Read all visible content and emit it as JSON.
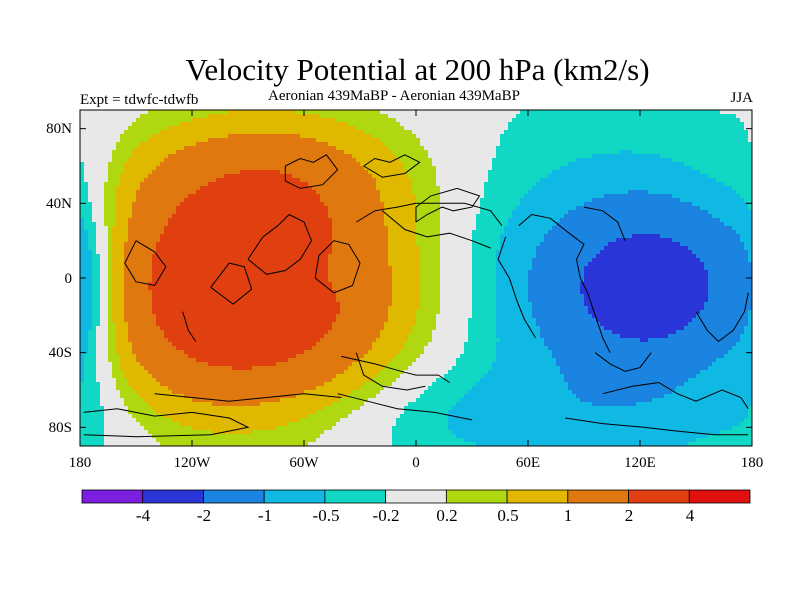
{
  "chart_data": {
    "type": "filled-contour-map",
    "title": "Velocity Potential at 200 hPa (km2/s)",
    "subtitle_left": "Expt = tdwfc-tdwfb",
    "subtitle_center": "Aeronian 439MaBP - Aeronian 439MaBP",
    "subtitle_right": "JJA",
    "x_axis": {
      "range": [
        -180,
        180
      ],
      "ticks": [
        {
          "value": -180,
          "label": "180"
        },
        {
          "value": -120,
          "label": "120W"
        },
        {
          "value": -60,
          "label": "60W"
        },
        {
          "value": 0,
          "label": "0"
        },
        {
          "value": 60,
          "label": "60E"
        },
        {
          "value": 120,
          "label": "120E"
        },
        {
          "value": 180,
          "label": "180"
        }
      ]
    },
    "y_axis": {
      "range": [
        -90,
        90
      ],
      "ticks": [
        {
          "value": 80,
          "label": "80N"
        },
        {
          "value": 40,
          "label": "40N"
        },
        {
          "value": 0,
          "label": "0"
        },
        {
          "value": -40,
          "label": "40S"
        },
        {
          "value": -80,
          "label": "80S"
        }
      ]
    },
    "contour_levels": [
      {
        "value": -4,
        "label": "-4"
      },
      {
        "value": -2,
        "label": "-2"
      },
      {
        "value": -1,
        "label": "-1"
      },
      {
        "value": -0.5,
        "label": "-0.5"
      },
      {
        "value": -0.2,
        "label": "-0.2"
      },
      {
        "value": 0.2,
        "label": "0.2"
      },
      {
        "value": 0.5,
        "label": "0.5"
      },
      {
        "value": 1,
        "label": "1"
      },
      {
        "value": 2,
        "label": "2"
      },
      {
        "value": 4,
        "label": "4"
      }
    ],
    "fill_colors": [
      "#7a1ee0",
      "#2a35d8",
      "#1a84e0",
      "#10b8e4",
      "#10d8c4",
      "#e8e8e8",
      "#b0d810",
      "#e0b800",
      "#e07810",
      "#e04010",
      "#e01010"
    ],
    "fields": [
      {
        "name": "positive-center",
        "lon": -95,
        "lat": -5,
        "peak": 3.6,
        "sigma_lon": 55,
        "sigma_lat": 42
      },
      {
        "name": "positive-north-extension",
        "lon": -75,
        "lat": 55,
        "peak": 0.9,
        "sigma_lon": 50,
        "sigma_lat": 22
      },
      {
        "name": "negative-center",
        "lon": 130,
        "lat": -5,
        "peak": -2.3,
        "sigma_lon": 40,
        "sigma_lat": 30
      },
      {
        "name": "negative-broad",
        "lon": 110,
        "lat": 0,
        "peak": -0.7,
        "sigma_lon": 75,
        "sigma_lat": 65
      },
      {
        "name": "negative-south",
        "lon": 60,
        "lat": -75,
        "peak": -0.5,
        "sigma_lon": 90,
        "sigma_lat": 20
      },
      {
        "name": "negative-eddy",
        "lon": -42,
        "lat": 3,
        "peak": -0.45,
        "sigma_lon": 12,
        "sigma_lat": 10
      },
      {
        "name": "negative-west-edge",
        "lon": -178,
        "lat": -5,
        "peak": -0.6,
        "sigma_lon": 14,
        "sigma_lat": 50
      }
    ],
    "coastlines": [
      [
        [
          -178,
          -72
        ],
        [
          -160,
          -70
        ],
        [
          -140,
          -74
        ],
        [
          -120,
          -72
        ],
        [
          -100,
          -75
        ],
        [
          -90,
          -80
        ],
        [
          -110,
          -84
        ],
        [
          -150,
          -85
        ],
        [
          -178,
          -84
        ]
      ],
      [
        [
          -140,
          -62
        ],
        [
          -120,
          -64
        ],
        [
          -100,
          -66
        ],
        [
          -80,
          -64
        ],
        [
          -60,
          -62
        ],
        [
          -40,
          -64
        ]
      ],
      [
        [
          -32,
          -40
        ],
        [
          -28,
          -52
        ],
        [
          -18,
          -58
        ],
        [
          -5,
          -60
        ],
        [
          5,
          -58
        ]
      ],
      [
        [
          -40,
          -42
        ],
        [
          -22,
          -46
        ],
        [
          -8,
          -50
        ],
        [
          0,
          -52
        ],
        [
          12,
          -52
        ],
        [
          18,
          -56
        ]
      ],
      [
        [
          -42,
          -62
        ],
        [
          -26,
          -66
        ],
        [
          -10,
          -70
        ],
        [
          10,
          -72
        ],
        [
          30,
          -76
        ]
      ],
      [
        [
          -70,
          60
        ],
        [
          -62,
          64
        ],
        [
          -55,
          62
        ],
        [
          -48,
          66
        ],
        [
          -42,
          58
        ],
        [
          -50,
          50
        ],
        [
          -62,
          48
        ],
        [
          -70,
          52
        ],
        [
          -70,
          60
        ]
      ],
      [
        [
          -90,
          10
        ],
        [
          -82,
          22
        ],
        [
          -74,
          28
        ],
        [
          -68,
          34
        ],
        [
          -60,
          30
        ],
        [
          -56,
          20
        ],
        [
          -62,
          10
        ],
        [
          -70,
          4
        ],
        [
          -80,
          2
        ],
        [
          -90,
          10
        ]
      ],
      [
        [
          -110,
          -5
        ],
        [
          -100,
          8
        ],
        [
          -92,
          6
        ],
        [
          -88,
          -6
        ],
        [
          -98,
          -14
        ],
        [
          -110,
          -5
        ]
      ],
      [
        [
          -150,
          20
        ],
        [
          -140,
          14
        ],
        [
          -134,
          6
        ],
        [
          -140,
          -4
        ],
        [
          -150,
          -2
        ],
        [
          -156,
          8
        ],
        [
          -150,
          20
        ]
      ],
      [
        [
          -125,
          -18
        ],
        [
          -122,
          -28
        ],
        [
          -118,
          -34
        ]
      ],
      [
        [
          -52,
          12
        ],
        [
          -44,
          20
        ],
        [
          -36,
          18
        ],
        [
          -30,
          8
        ],
        [
          -34,
          -4
        ],
        [
          -44,
          -8
        ],
        [
          -54,
          0
        ],
        [
          -52,
          12
        ]
      ],
      [
        [
          -32,
          30
        ],
        [
          -22,
          36
        ],
        [
          -10,
          38
        ],
        [
          0,
          40
        ],
        [
          12,
          40
        ],
        [
          26,
          40
        ],
        [
          40,
          36
        ],
        [
          46,
          28
        ]
      ],
      [
        [
          -18,
          36
        ],
        [
          -6,
          26
        ],
        [
          6,
          22
        ],
        [
          18,
          24
        ],
        [
          30,
          20
        ],
        [
          40,
          16
        ]
      ],
      [
        [
          0,
          30
        ],
        [
          6,
          34
        ],
        [
          14,
          38
        ],
        [
          20,
          36
        ],
        [
          30,
          38
        ],
        [
          34,
          44
        ],
        [
          22,
          48
        ],
        [
          8,
          44
        ],
        [
          0,
          38
        ],
        [
          0,
          30
        ]
      ],
      [
        [
          -28,
          60
        ],
        [
          -22,
          64
        ],
        [
          -14,
          62
        ],
        [
          -6,
          66
        ],
        [
          2,
          62
        ],
        [
          -6,
          56
        ],
        [
          -18,
          54
        ],
        [
          -28,
          60
        ]
      ],
      [
        [
          55,
          28
        ],
        [
          62,
          34
        ],
        [
          72,
          32
        ],
        [
          82,
          24
        ],
        [
          90,
          18
        ],
        [
          86,
          10
        ],
        [
          88,
          0
        ],
        [
          92,
          -8
        ],
        [
          96,
          -20
        ],
        [
          100,
          -32
        ],
        [
          104,
          -40
        ]
      ],
      [
        [
          48,
          22
        ],
        [
          44,
          10
        ],
        [
          50,
          0
        ],
        [
          54,
          -12
        ],
        [
          58,
          -22
        ],
        [
          64,
          -32
        ]
      ],
      [
        [
          90,
          38
        ],
        [
          100,
          36
        ],
        [
          108,
          30
        ],
        [
          112,
          20
        ]
      ],
      [
        [
          96,
          -40
        ],
        [
          104,
          -46
        ],
        [
          112,
          -50
        ],
        [
          120,
          -48
        ],
        [
          126,
          -40
        ]
      ],
      [
        [
          100,
          -62
        ],
        [
          116,
          -58
        ],
        [
          130,
          -56
        ],
        [
          140,
          -62
        ],
        [
          150,
          -66
        ],
        [
          164,
          -60
        ],
        [
          174,
          -64
        ],
        [
          178,
          -70
        ]
      ],
      [
        [
          80,
          -75
        ],
        [
          100,
          -78
        ],
        [
          122,
          -80
        ],
        [
          140,
          -82
        ],
        [
          160,
          -84
        ],
        [
          178,
          -84
        ]
      ],
      [
        [
          150,
          -18
        ],
        [
          156,
          -28
        ],
        [
          162,
          -34
        ],
        [
          170,
          -28
        ],
        [
          176,
          -18
        ],
        [
          178,
          -8
        ]
      ]
    ]
  }
}
